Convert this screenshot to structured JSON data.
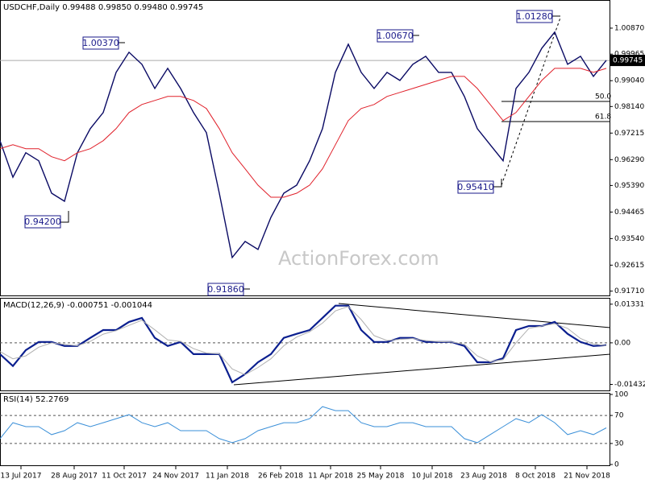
{
  "chart_data": [
    {
      "type": "line",
      "title": "USDCHF,Daily 0.99488 0.99850 0.99480 0.99745",
      "watermark": "ActionForex.com",
      "x": [
        0,
        8,
        16,
        24,
        32,
        40,
        48,
        56,
        64,
        72,
        80,
        88,
        96,
        104,
        112,
        120,
        128,
        136,
        144,
        152,
        160,
        168,
        176,
        184,
        192,
        200,
        208,
        216,
        224,
        232,
        240,
        248,
        256,
        264,
        272,
        280,
        288,
        296,
        304,
        312,
        320,
        328,
        336,
        344,
        352,
        360,
        368,
        376
      ],
      "xlim": [
        0,
        378
      ],
      "series": [
        {
          "color": "#0a0a64",
          "values": [
            0.9695,
            0.9568,
            0.9653,
            0.9625,
            0.9512,
            0.9484,
            0.9653,
            0.9737,
            0.9793,
            0.9933,
            1.0003,
            0.9961,
            0.9877,
            0.9947,
            0.9877,
            0.9793,
            0.9723,
            0.9512,
            0.9288,
            0.9344,
            0.9316,
            0.9428,
            0.9512,
            0.954,
            0.9625,
            0.9737,
            0.9933,
            1.0031,
            0.9933,
            0.9877,
            0.9933,
            0.9905,
            0.9961,
            0.9989,
            0.9933,
            0.9933,
            0.9849,
            0.9737,
            0.9681,
            0.9625,
            0.9877,
            0.9933,
            1.0017,
            1.0073,
            0.9961,
            0.9989,
            0.9919,
            0.9975
          ]
        },
        {
          "color": "#e0202a",
          "values": [
            0.9667,
            0.9681,
            0.9667,
            0.9667,
            0.9639,
            0.9625,
            0.9653,
            0.9667,
            0.9695,
            0.9737,
            0.9793,
            0.9821,
            0.9835,
            0.9849,
            0.9849,
            0.9835,
            0.9807,
            0.9737,
            0.9653,
            0.9597,
            0.954,
            0.9498,
            0.9498,
            0.9512,
            0.954,
            0.9597,
            0.9681,
            0.9765,
            0.9807,
            0.9821,
            0.9849,
            0.9863,
            0.9877,
            0.9891,
            0.9905,
            0.9919,
            0.9919,
            0.9877,
            0.9821,
            0.9765,
            0.9793,
            0.9849,
            0.9905,
            0.9947,
            0.9947,
            0.9947,
            0.9933,
            0.9947
          ]
        }
      ],
      "last": 0.99745,
      "ylim": [
        0.9156,
        1.0185
      ],
      "yticks": [
        {
          "value": 1.0087,
          "label": "1.00870"
        },
        0.99965,
        {
          "value": 0.9904,
          "label": "0.99040"
        },
        {
          "value": 0.9814,
          "label": "0.98140"
        },
        0.97215,
        {
          "value": 0.9629,
          "label": "0.96290"
        },
        {
          "value": 0.9539,
          "label": "0.95390"
        },
        0.94465,
        {
          "value": 0.9354,
          "label": "0.93540"
        },
        0.92615,
        {
          "value": 0.9171,
          "label": "0.91710"
        }
      ],
      "annotations": [
        "1.00370",
        "1.00670",
        "1.01280",
        "0.94200",
        "0.91860",
        "0.95410",
        "50.0",
        "61.8"
      ]
    },
    {
      "type": "line",
      "title": "MACD(12,26,9) -0.000751 -0.001044",
      "series": [
        {
          "color": "#0b1f8f",
          "values": [
            -0.0039,
            -0.008,
            -0.0025,
            0.0003,
            0.0003,
            -0.0011,
            -0.0011,
            0.0017,
            0.0044,
            0.0044,
            0.0072,
            0.0086,
            0.0017,
            -0.0011,
            0.0003,
            -0.0039,
            -0.0039,
            -0.0039,
            -0.0136,
            -0.0108,
            -0.0067,
            -0.0039,
            0.0017,
            0.0031,
            0.0044,
            0.0086,
            0.0128,
            0.0128,
            0.0044,
            0.0003,
            0.0003,
            0.0017,
            0.0017,
            0.0003,
            0.0003,
            0.0003,
            -0.0011,
            -0.0067,
            -0.0067,
            -0.0053,
            0.0044,
            0.0058,
            0.0058,
            0.0072,
            0.0031,
            0.0003,
            -0.0011,
            -0.0008
          ]
        },
        {
          "color": "#b0b0b0",
          "values": [
            -0.003,
            -0.0055,
            -0.0045,
            -0.0015,
            0,
            -0.0005,
            -0.001,
            0.0005,
            0.003,
            0.0042,
            0.006,
            0.0078,
            0.0045,
            0.001,
            0.0005,
            -0.002,
            -0.0035,
            -0.0038,
            -0.009,
            -0.011,
            -0.0085,
            -0.0055,
            -0.001,
            0.002,
            0.0038,
            0.0068,
            0.011,
            0.0125,
            0.008,
            0.0025,
            0.0008,
            0.0012,
            0.0015,
            0.0008,
            0.0004,
            0.0003,
            -0.0005,
            -0.0045,
            -0.0065,
            -0.0058,
            0,
            0.005,
            0.0058,
            0.0066,
            0.005,
            0.0015,
            -0.0004,
            -0.001
          ]
        }
      ],
      "ylim": [
        -0.0164,
        0.0155
      ],
      "yticks": [
        0.013319,
        {
          "value": 0,
          "label": "0.00"
        },
        -0.014323
      ],
      "dashed": [
        0
      ]
    },
    {
      "type": "line",
      "title": "RSI(14) 52.2769",
      "series": [
        {
          "color": "#3a8fd8",
          "values": [
            36.9,
            59.7,
            54,
            54,
            42.6,
            48.3,
            59.7,
            54,
            59.7,
            65.4,
            71.1,
            59.7,
            54,
            59.7,
            48.3,
            48.3,
            48.3,
            36.9,
            31.1,
            36.9,
            48.3,
            54,
            59.7,
            59.7,
            65.4,
            82.6,
            76.9,
            76.9,
            59.7,
            54,
            54,
            59.7,
            59.7,
            54,
            54,
            54,
            36.9,
            31.1,
            42.6,
            54,
            65.4,
            59.7,
            71.1,
            59.7,
            42.6,
            48.3,
            42.6,
            52.3
          ]
        }
      ],
      "ylim": [
        0,
        100
      ],
      "yticks": [
        100,
        70,
        30,
        0
      ],
      "dashed": [
        70,
        30
      ],
      "xticks": [
        {
          "value": 13,
          "label": "13 Jul 2017"
        },
        {
          "value": 46,
          "label": "28 Aug 2017"
        },
        {
          "value": 77,
          "label": "11 Oct 2017"
        },
        {
          "value": 109,
          "label": "24 Nov 2017"
        },
        {
          "value": 141,
          "label": "11 Jan 2018"
        },
        {
          "value": 174,
          "label": "26 Feb 2018"
        },
        {
          "value": 205,
          "label": "11 Apr 2018"
        },
        {
          "value": 236,
          "label": "25 May 2018"
        },
        {
          "value": 268,
          "label": "10 Jul 2018"
        },
        {
          "value": 300,
          "label": "23 Aug 2018"
        },
        {
          "value": 332,
          "label": "8 Oct 2018"
        },
        {
          "value": 364,
          "label": "21 Nov 2018"
        }
      ]
    }
  ]
}
